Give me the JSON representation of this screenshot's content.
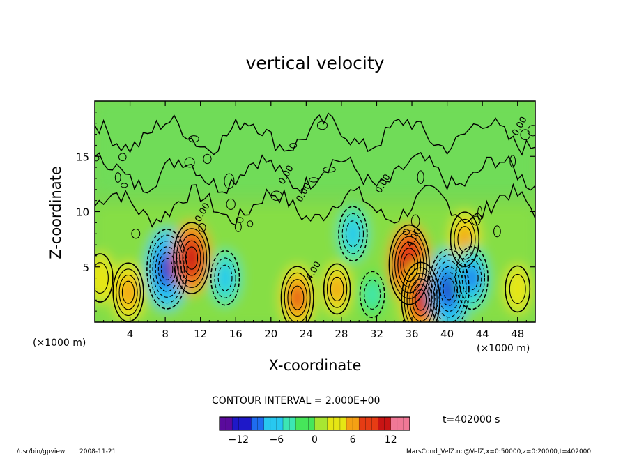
{
  "chart_data": {
    "type": "heatmap",
    "title": "vertical velocity",
    "xlabel": "X-coordinate",
    "ylabel": "Z-coordinate",
    "x_unit": "(×1000 m)",
    "y_unit": "(×1000 m)",
    "x_ticks": [
      4,
      8,
      12,
      16,
      20,
      24,
      28,
      32,
      36,
      40,
      44,
      48
    ],
    "y_ticks": [
      5,
      10,
      15
    ],
    "xlim": [
      0,
      50
    ],
    "ylim": [
      0,
      20
    ],
    "contour_interval_text": "CONTOUR INTERVAL = 2.000E+00",
    "contour_labels": [
      "0.00",
      "0.00",
      "0.00",
      "0.00",
      "4.00",
      "4.00",
      "0.00"
    ],
    "colorbar": {
      "ticks": [
        -12,
        -6,
        0,
        6,
        12
      ],
      "range": [
        -15,
        15
      ],
      "colors": [
        "#5a0a9c",
        "#1e18c8",
        "#1e6cf0",
        "#28c8f0",
        "#3ce6b4",
        "#46e65a",
        "#a8e632",
        "#e6e614",
        "#f5a014",
        "#e63c14",
        "#c81414",
        "#f07896"
      ]
    },
    "features": [
      {
        "x": 0.6,
        "z": 4.0,
        "w": 4.5,
        "kind": "updraft"
      },
      {
        "x": 3.8,
        "z": 2.7,
        "w": 7.0,
        "kind": "updraft"
      },
      {
        "x": 8.2,
        "z": 4.8,
        "w": -12.0,
        "kind": "downdraft"
      },
      {
        "x": 11.0,
        "z": 5.8,
        "w": 10.0,
        "kind": "updraft"
      },
      {
        "x": 14.8,
        "z": 4.0,
        "w": -6.0,
        "kind": "downdraft"
      },
      {
        "x": 23.0,
        "z": 2.2,
        "w": 8.0,
        "kind": "updraft"
      },
      {
        "x": 27.5,
        "z": 3.0,
        "w": 5.0,
        "kind": "updraft"
      },
      {
        "x": 29.3,
        "z": 8.0,
        "w": -6.0,
        "kind": "downdraft"
      },
      {
        "x": 31.5,
        "z": 2.5,
        "w": -4.0,
        "kind": "downdraft"
      },
      {
        "x": 35.7,
        "z": 5.2,
        "w": 12.0,
        "kind": "updraft"
      },
      {
        "x": 37.0,
        "z": 2.0,
        "w": 11.0,
        "kind": "updraft"
      },
      {
        "x": 40.2,
        "z": 3.0,
        "w": -12.0,
        "kind": "downdraft"
      },
      {
        "x": 42.0,
        "z": 7.5,
        "w": 6.0,
        "kind": "updraft"
      },
      {
        "x": 42.8,
        "z": 4.0,
        "w": -8.0,
        "kind": "downdraft"
      },
      {
        "x": 48.0,
        "z": 3.0,
        "w": 4.0,
        "kind": "updraft"
      }
    ]
  },
  "time_label": "t=402000 s",
  "footer": {
    "program": "/usr/bin/gpview",
    "date": "2008-11-21",
    "source": "MarsCond_VelZ.nc@VelZ,x=0:50000,z=0:20000,t=402000"
  }
}
